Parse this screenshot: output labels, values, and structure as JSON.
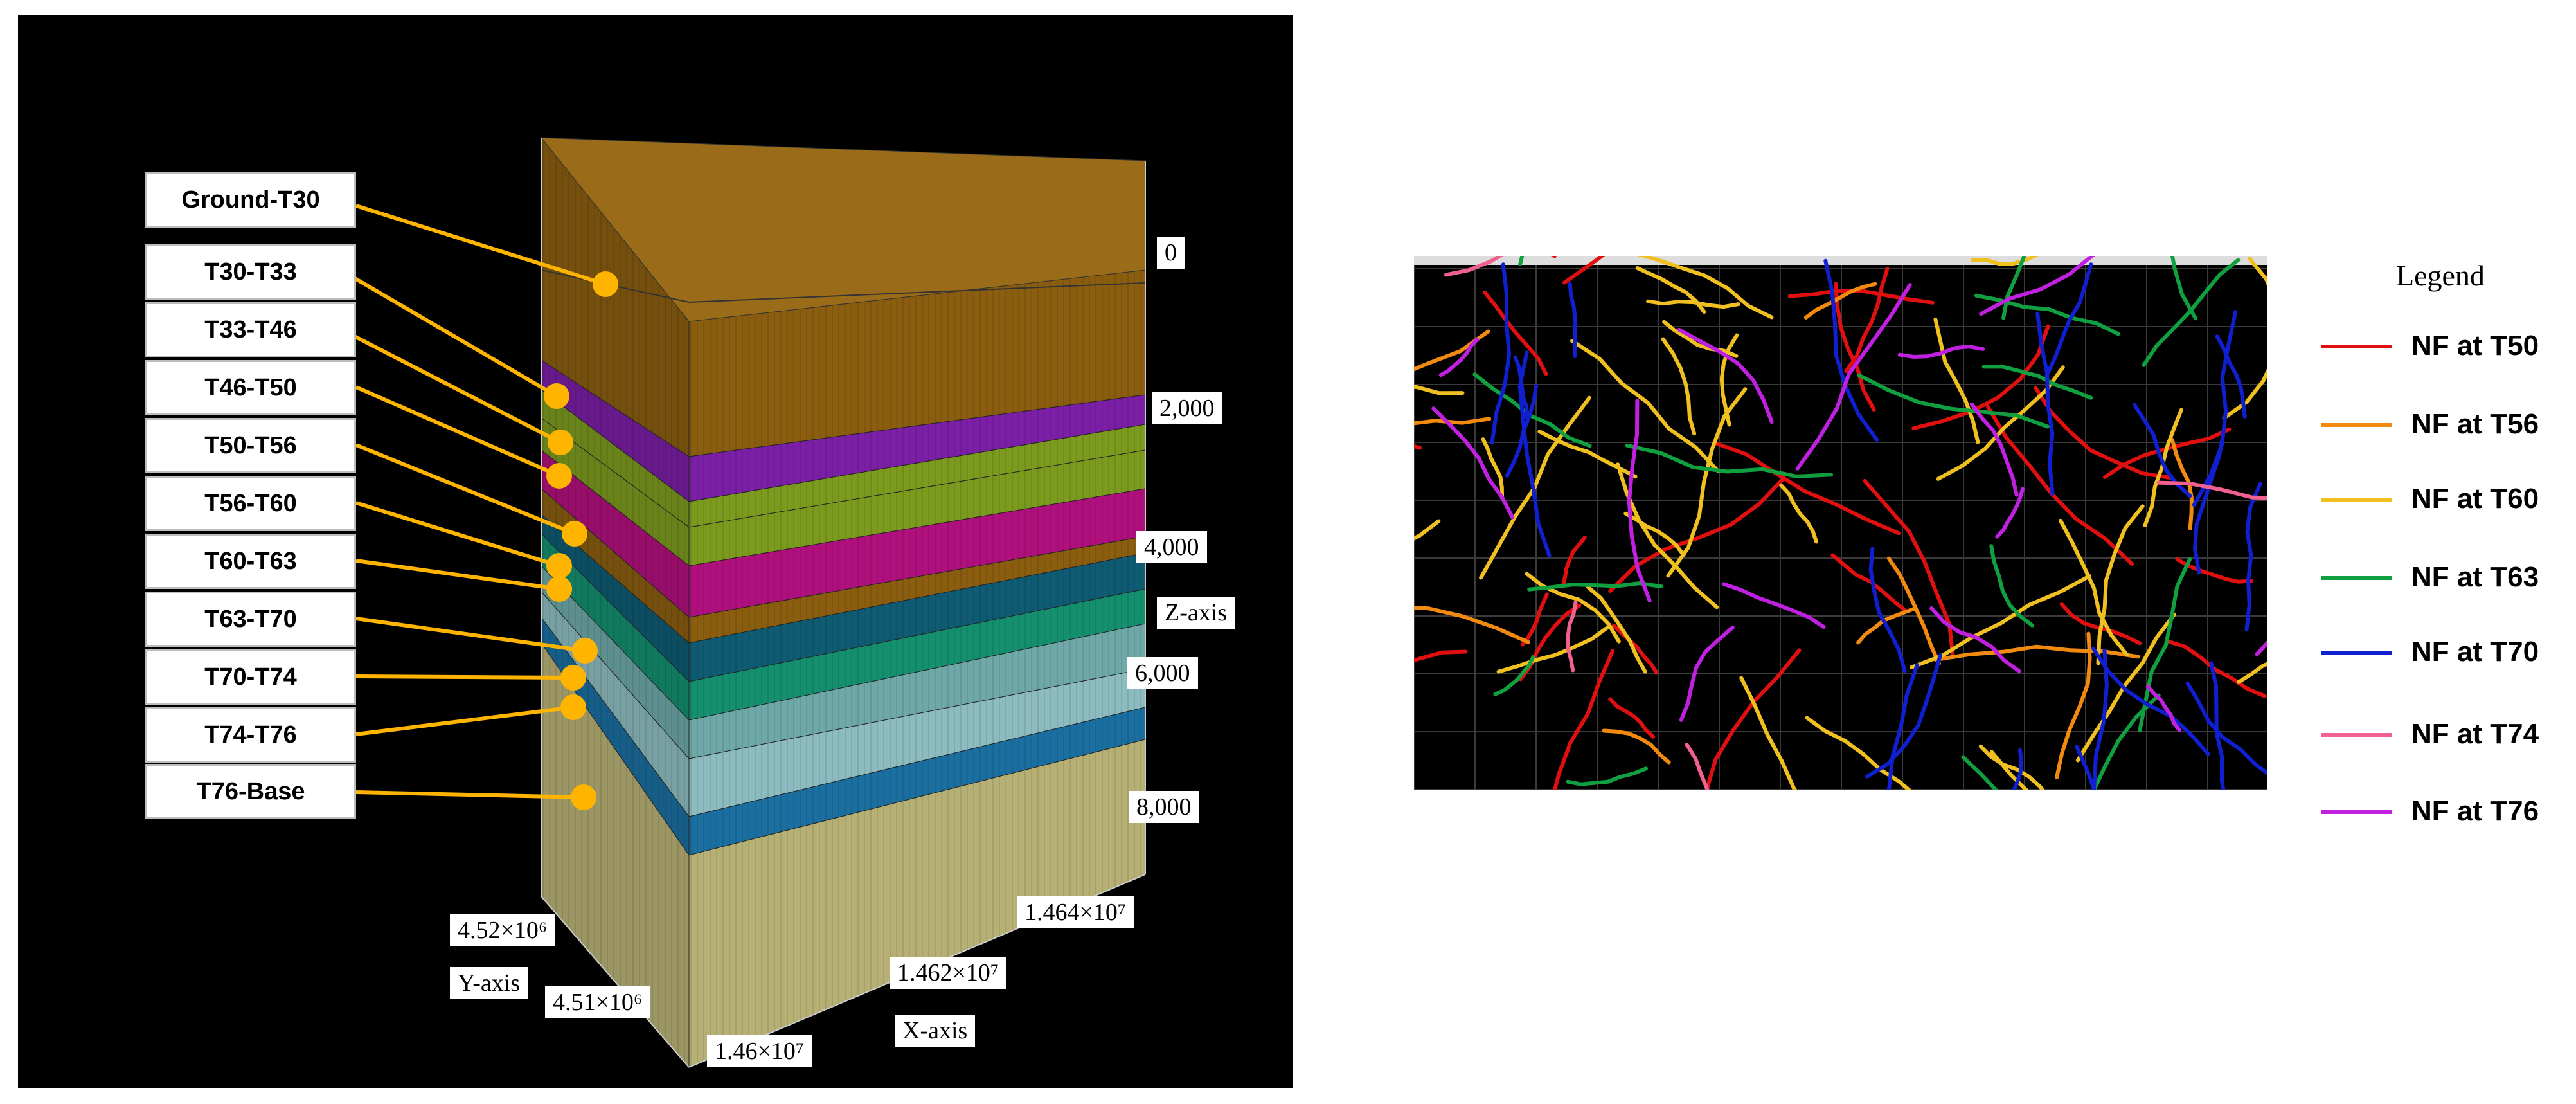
{
  "left_panel": {
    "layers": [
      {
        "name": "Ground-T30",
        "color": "#8a5d0f"
      },
      {
        "name": "T30-T33",
        "color": "#7a1fa6"
      },
      {
        "name": "T33-T46",
        "color": "#7b9a1e"
      },
      {
        "name": "T46-T50",
        "color": "#7b9a1e"
      },
      {
        "name": "T50-T56",
        "color": "#b0107d"
      },
      {
        "name": "T56-T60",
        "color": "#8a5d0f"
      },
      {
        "name": "T60-T63",
        "color": "#0f5b73"
      },
      {
        "name": "T63-T70",
        "color": "#14906e"
      },
      {
        "name": "T70-T74",
        "color": "#6fa8a8"
      },
      {
        "name": "T74-T76",
        "color": "#1a6fa0"
      },
      {
        "name": "T76-Base",
        "color": "#b6b074"
      }
    ],
    "pointer_color": "#ffb400",
    "z_axis": {
      "title": "Z-axis",
      "ticks": [
        "0",
        "2,000",
        "4,000",
        "6,000",
        "8,000"
      ]
    },
    "y_axis": {
      "title": "Y-axis",
      "ticks": [
        "4.52×10⁶",
        "4.51×10⁶"
      ]
    },
    "x_axis": {
      "title": "X-axis",
      "ticks": [
        "1.46×10⁷",
        "1.462×10⁷",
        "1.464×10⁷"
      ]
    }
  },
  "legend": {
    "title": "Legend",
    "items": [
      {
        "label": "NF at T50",
        "color": "#e01010"
      },
      {
        "label": "NF at T56",
        "color": "#f28a10"
      },
      {
        "label": "NF at T60",
        "color": "#f0c020"
      },
      {
        "label": "NF at T63",
        "color": "#10a040"
      },
      {
        "label": "NF at T70",
        "color": "#1020d0"
      },
      {
        "label": "NF at T74",
        "color": "#f06090"
      },
      {
        "label": "NF at T76",
        "color": "#c020e0"
      }
    ]
  }
}
